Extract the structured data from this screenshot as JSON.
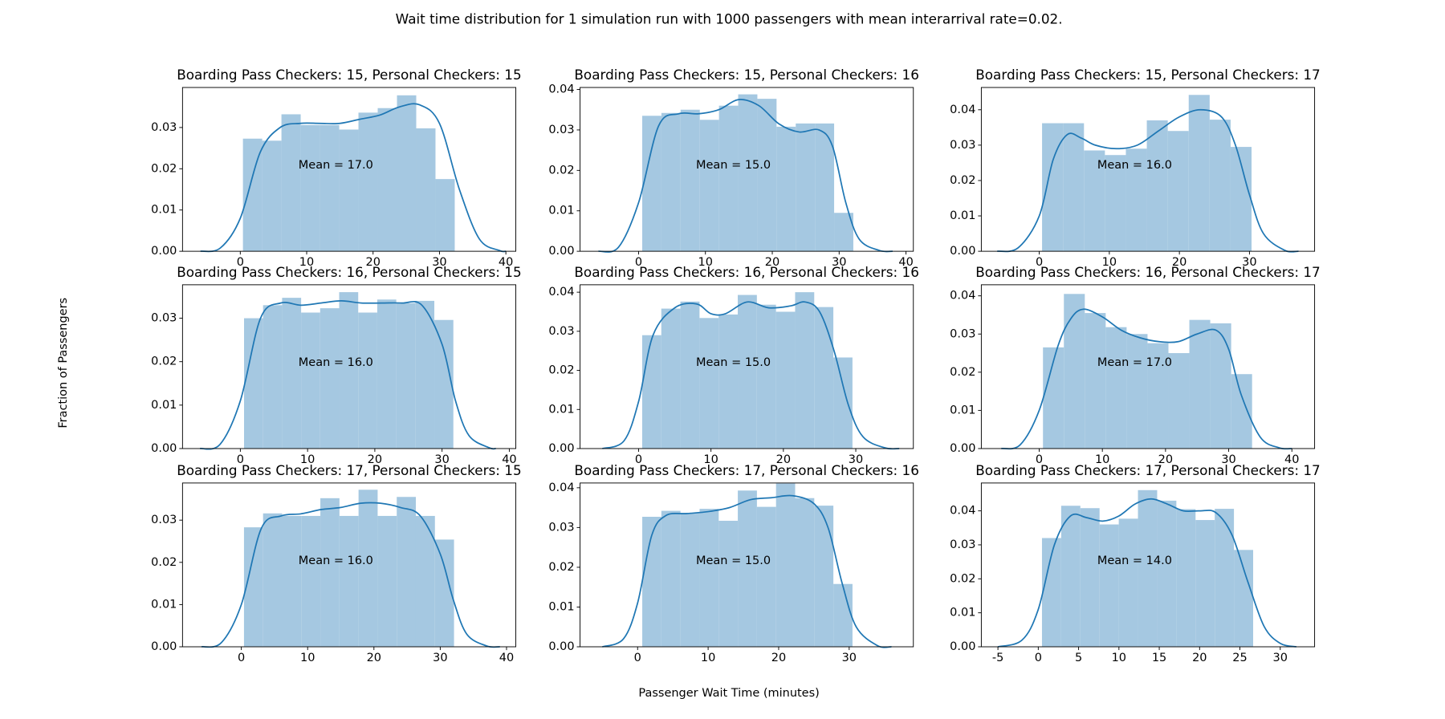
{
  "figure": {
    "title": "Wait time distribution for 1 simulation run with 1000 passengers with mean interarrival rate=0.02.",
    "xlabel": "Passenger Wait Time (minutes)",
    "ylabel": "Fraction of Passengers"
  },
  "chart_data": [
    {
      "type": "histogram",
      "title": "Boarding Pass Checkers: 15, Personal Checkers: 15",
      "annotation": "Mean = 17.0",
      "color": "#a5c8e1",
      "line_color": "#1f77b4",
      "bins": [
        0.4,
        3.3,
        6.2,
        9.1,
        12.0,
        14.9,
        17.8,
        20.7,
        23.6,
        26.5,
        29.4,
        32.3
      ],
      "values": [
        0.0273,
        0.0268,
        0.0332,
        0.0306,
        0.0306,
        0.0295,
        0.0336,
        0.0347,
        0.0378,
        0.0298,
        0.0175
      ],
      "kde": {
        "x": [
          -6,
          -3,
          0,
          3,
          6,
          9,
          12,
          15,
          18,
          21,
          24,
          27,
          30,
          33,
          36,
          39,
          40
        ],
        "values": [
          0,
          0.0008,
          0.008,
          0.024,
          0.03,
          0.031,
          0.031,
          0.031,
          0.032,
          0.033,
          0.035,
          0.0355,
          0.031,
          0.015,
          0.003,
          0.0002,
          0
        ]
      },
      "xlim": [
        -8.7,
        41.5
      ],
      "xticks": [
        0,
        10,
        20,
        30,
        40
      ],
      "ylim": [
        0,
        0.0397
      ],
      "yticks": [
        {
          "value": 0,
          "label": "0.00"
        },
        {
          "value": 0.01,
          "label": "0.01"
        },
        {
          "value": 0.02,
          "label": "0.02"
        },
        {
          "value": 0.03,
          "label": "0.03"
        }
      ]
    },
    {
      "type": "histogram",
      "title": "Boarding Pass Checkers: 15, Personal Checkers: 16",
      "annotation": "Mean = 15.0",
      "color": "#a5c8e1",
      "line_color": "#1f77b4",
      "bins": [
        0.55,
        3.42,
        6.29,
        9.16,
        12.03,
        14.9,
        17.77,
        20.64,
        23.51,
        26.38,
        29.25,
        32.12
      ],
      "values": [
        0.0335,
        0.0342,
        0.035,
        0.0325,
        0.036,
        0.0388,
        0.0377,
        0.0308,
        0.0316,
        0.0316,
        0.0095
      ],
      "kde": {
        "x": [
          -6,
          -3,
          0,
          3,
          6,
          9,
          12,
          15,
          18,
          21,
          24,
          27,
          29,
          31,
          33,
          36,
          38
        ],
        "values": [
          0,
          0.001,
          0.012,
          0.031,
          0.034,
          0.034,
          0.035,
          0.0375,
          0.036,
          0.0315,
          0.0295,
          0.03,
          0.026,
          0.012,
          0.003,
          0.0002,
          0
        ]
      },
      "xlim": [
        -8.75,
        41.1
      ],
      "xticks": [
        0,
        10,
        20,
        30,
        40
      ],
      "ylim": [
        0,
        0.0405
      ],
      "yticks": [
        {
          "value": 0,
          "label": "0.00"
        },
        {
          "value": 0.01,
          "label": "0.01"
        },
        {
          "value": 0.02,
          "label": "0.02"
        },
        {
          "value": 0.03,
          "label": "0.03"
        },
        {
          "value": 0.04,
          "label": "0.04"
        }
      ]
    },
    {
      "type": "histogram",
      "title": "Boarding Pass Checkers: 15, Personal Checkers: 17",
      "annotation": "Mean = 16.0",
      "color": "#a5c8e1",
      "line_color": "#1f77b4",
      "bins": [
        0.4,
        3.39,
        6.38,
        9.37,
        12.36,
        15.35,
        18.34,
        21.33,
        24.32,
        27.31,
        30.3
      ],
      "values": [
        0.0362,
        0.0362,
        0.0285,
        0.0272,
        0.029,
        0.037,
        0.034,
        0.0442,
        0.0372,
        0.0295
      ],
      "kde": {
        "x": [
          -6,
          -3,
          0,
          2,
          4,
          6,
          8,
          11,
          14,
          17,
          20,
          23,
          26,
          28,
          30,
          32,
          35,
          37
        ],
        "values": [
          0,
          0.001,
          0.01,
          0.026,
          0.033,
          0.032,
          0.03,
          0.029,
          0.03,
          0.034,
          0.038,
          0.04,
          0.038,
          0.03,
          0.016,
          0.005,
          0.0003,
          0
        ]
      },
      "xlim": [
        -8.27,
        39.3
      ],
      "xticks": [
        0,
        10,
        20,
        30
      ],
      "ylim": [
        0,
        0.0463
      ],
      "yticks": [
        {
          "value": 0,
          "label": "0.00"
        },
        {
          "value": 0.01,
          "label": "0.01"
        },
        {
          "value": 0.02,
          "label": "0.02"
        },
        {
          "value": 0.03,
          "label": "0.03"
        },
        {
          "value": 0.04,
          "label": "0.04"
        }
      ]
    },
    {
      "type": "histogram",
      "title": "Boarding Pass Checkers: 16, Personal Checkers: 15",
      "annotation": "Mean = 16.0",
      "color": "#a5c8e1",
      "line_color": "#1f77b4",
      "bins": [
        0.55,
        3.38,
        6.21,
        9.04,
        11.87,
        14.7,
        17.53,
        20.36,
        23.19,
        26.02,
        28.85,
        31.68
      ],
      "values": [
        0.03,
        0.033,
        0.0347,
        0.0313,
        0.0323,
        0.036,
        0.0313,
        0.0343,
        0.0335,
        0.034,
        0.0296
      ],
      "kde": {
        "x": [
          -6,
          -3,
          0,
          3,
          6,
          9,
          12,
          15,
          18,
          21,
          24,
          27,
          30,
          32,
          34,
          37,
          38
        ],
        "values": [
          0,
          0.001,
          0.011,
          0.03,
          0.0335,
          0.033,
          0.0335,
          0.034,
          0.0335,
          0.0335,
          0.0335,
          0.033,
          0.024,
          0.011,
          0.003,
          0.0002,
          0
        ]
      },
      "xlim": [
        -8.6,
        40.97
      ],
      "xticks": [
        0,
        10,
        20,
        30,
        40
      ],
      "ylim": [
        0,
        0.0377
      ],
      "yticks": [
        {
          "value": 0,
          "label": "0.00"
        },
        {
          "value": 0.01,
          "label": "0.01"
        },
        {
          "value": 0.02,
          "label": "0.02"
        },
        {
          "value": 0.03,
          "label": "0.03"
        }
      ]
    },
    {
      "type": "histogram",
      "title": "Boarding Pass Checkers: 16, Personal Checkers: 16",
      "annotation": "Mean = 15.0",
      "color": "#a5c8e1",
      "line_color": "#1f77b4",
      "bins": [
        0.5,
        3.14,
        5.78,
        8.42,
        11.06,
        13.7,
        16.34,
        18.98,
        21.62,
        24.26,
        26.9,
        29.54
      ],
      "values": [
        0.029,
        0.0358,
        0.0376,
        0.0334,
        0.0343,
        0.0393,
        0.0368,
        0.035,
        0.04,
        0.0362,
        0.0233
      ],
      "kde": {
        "x": [
          -5,
          -2,
          0,
          2,
          5,
          8,
          10,
          12,
          15,
          18,
          21,
          23,
          25,
          27,
          29,
          31,
          34,
          36
        ],
        "values": [
          0,
          0.002,
          0.012,
          0.029,
          0.036,
          0.037,
          0.0345,
          0.0345,
          0.0375,
          0.036,
          0.0365,
          0.0375,
          0.035,
          0.025,
          0.011,
          0.003,
          0.0002,
          0
        ]
      },
      "xlim": [
        -8.08,
        37.95
      ],
      "xticks": [
        0,
        10,
        20,
        30
      ],
      "ylim": [
        0,
        0.0419
      ],
      "yticks": [
        {
          "value": 0,
          "label": "0.00"
        },
        {
          "value": 0.01,
          "label": "0.01"
        },
        {
          "value": 0.02,
          "label": "0.02"
        },
        {
          "value": 0.03,
          "label": "0.03"
        },
        {
          "value": 0.04,
          "label": "0.04"
        }
      ]
    },
    {
      "type": "histogram",
      "title": "Boarding Pass Checkers: 16, Personal Checkers: 17",
      "annotation": "Mean = 17.0",
      "color": "#a5c8e1",
      "line_color": "#1f77b4",
      "bins": [
        0.6,
        3.91,
        7.22,
        10.53,
        13.84,
        17.15,
        20.46,
        23.77,
        27.08,
        30.39,
        33.7
      ],
      "values": [
        0.0265,
        0.0405,
        0.0355,
        0.0318,
        0.03,
        0.0276,
        0.025,
        0.0337,
        0.0328,
        0.0195
      ],
      "kde": {
        "x": [
          -6,
          -3,
          0,
          3,
          5,
          7,
          10,
          13,
          16,
          19,
          22,
          25,
          28,
          30,
          32,
          35,
          38,
          40
        ],
        "values": [
          0,
          0.001,
          0.01,
          0.027,
          0.034,
          0.0365,
          0.0345,
          0.031,
          0.029,
          0.028,
          0.028,
          0.03,
          0.031,
          0.026,
          0.014,
          0.003,
          0.0002,
          0
        ]
      },
      "xlim": [
        -9.16,
        43.6
      ],
      "xticks": [
        0,
        10,
        20,
        30,
        40
      ],
      "ylim": [
        0,
        0.0429
      ],
      "yticks": [
        {
          "value": 0,
          "label": "0.00"
        },
        {
          "value": 0.01,
          "label": "0.01"
        },
        {
          "value": 0.02,
          "label": "0.02"
        },
        {
          "value": 0.03,
          "label": "0.03"
        },
        {
          "value": 0.04,
          "label": "0.04"
        }
      ]
    },
    {
      "type": "histogram",
      "title": "Boarding Pass Checkers: 17, Personal Checkers: 15",
      "annotation": "Mean = 16.0",
      "color": "#a5c8e1",
      "line_color": "#1f77b4",
      "bins": [
        0.4,
        3.28,
        6.16,
        9.04,
        11.92,
        14.8,
        17.68,
        20.56,
        23.44,
        26.32,
        29.2,
        32.08
      ],
      "values": [
        0.0283,
        0.0316,
        0.031,
        0.031,
        0.0352,
        0.031,
        0.0372,
        0.031,
        0.0355,
        0.031,
        0.0254
      ],
      "kde": {
        "x": [
          -6,
          -3,
          0,
          3,
          6,
          9,
          12,
          15,
          18,
          21,
          24,
          27,
          30,
          32,
          34,
          37,
          39
        ],
        "values": [
          0,
          0.001,
          0.01,
          0.028,
          0.031,
          0.0315,
          0.0325,
          0.033,
          0.034,
          0.034,
          0.033,
          0.031,
          0.022,
          0.011,
          0.003,
          0.0002,
          0
        ]
      },
      "xlim": [
        -8.87,
        41.4
      ],
      "xticks": [
        0,
        10,
        20,
        30,
        40
      ],
      "ylim": [
        0,
        0.0388
      ],
      "yticks": [
        {
          "value": 0,
          "label": "0.00"
        },
        {
          "value": 0.01,
          "label": "0.01"
        },
        {
          "value": 0.02,
          "label": "0.02"
        },
        {
          "value": 0.03,
          "label": "0.03"
        }
      ]
    },
    {
      "type": "histogram",
      "title": "Boarding Pass Checkers: 17, Personal Checkers: 16",
      "annotation": "Mean = 15.0",
      "color": "#a5c8e1",
      "line_color": "#1f77b4",
      "bins": [
        0.66,
        3.37,
        6.08,
        8.79,
        11.5,
        14.21,
        16.92,
        19.63,
        22.34,
        25.05,
        27.76,
        30.47
      ],
      "values": [
        0.0327,
        0.0342,
        0.0337,
        0.0347,
        0.0317,
        0.0393,
        0.0352,
        0.0411,
        0.0374,
        0.0355,
        0.0158
      ],
      "kde": {
        "x": [
          -5,
          -2,
          0,
          2,
          4,
          7,
          10,
          13,
          16,
          19,
          22,
          25,
          27,
          29,
          31,
          34,
          36
        ],
        "values": [
          0,
          0.002,
          0.011,
          0.028,
          0.033,
          0.0335,
          0.034,
          0.035,
          0.037,
          0.0375,
          0.038,
          0.036,
          0.03,
          0.016,
          0.005,
          0.0003,
          0
        ]
      },
      "xlim": [
        -8.16,
        39.1
      ],
      "xticks": [
        0,
        10,
        20,
        30
      ],
      "ylim": [
        0,
        0.0412
      ],
      "yticks": [
        {
          "value": 0,
          "label": "0.00"
        },
        {
          "value": 0.01,
          "label": "0.01"
        },
        {
          "value": 0.02,
          "label": "0.02"
        },
        {
          "value": 0.03,
          "label": "0.03"
        },
        {
          "value": 0.04,
          "label": "0.04"
        }
      ]
    },
    {
      "type": "histogram",
      "title": "Boarding Pass Checkers: 17, Personal Checkers: 17",
      "annotation": "Mean = 14.0",
      "color": "#a5c8e1",
      "line_color": "#1f77b4",
      "bins": [
        0.46,
        2.84,
        5.22,
        7.6,
        9.98,
        12.36,
        14.74,
        17.12,
        19.5,
        21.88,
        24.26,
        26.64
      ],
      "values": [
        0.032,
        0.0415,
        0.0408,
        0.036,
        0.0377,
        0.0461,
        0.043,
        0.0405,
        0.0373,
        0.0406,
        0.0285
      ],
      "kde": {
        "x": [
          -5,
          -2,
          0,
          2,
          4,
          6,
          8,
          10,
          12,
          14,
          16,
          18,
          20,
          22,
          24,
          26,
          28,
          30,
          32
        ],
        "values": [
          0,
          0.002,
          0.011,
          0.03,
          0.0385,
          0.038,
          0.037,
          0.0385,
          0.042,
          0.0435,
          0.042,
          0.04,
          0.04,
          0.0395,
          0.033,
          0.019,
          0.006,
          0.001,
          0
        ]
      },
      "xlim": [
        -7.06,
        34.26
      ],
      "xticks": [
        -5,
        0,
        5,
        10,
        15,
        20,
        25,
        30
      ],
      "ylim": [
        0,
        0.0482
      ],
      "yticks": [
        {
          "value": 0,
          "label": "0.00"
        },
        {
          "value": 0.01,
          "label": "0.01"
        },
        {
          "value": 0.02,
          "label": "0.02"
        },
        {
          "value": 0.03,
          "label": "0.03"
        },
        {
          "value": 0.04,
          "label": "0.04"
        }
      ]
    }
  ]
}
